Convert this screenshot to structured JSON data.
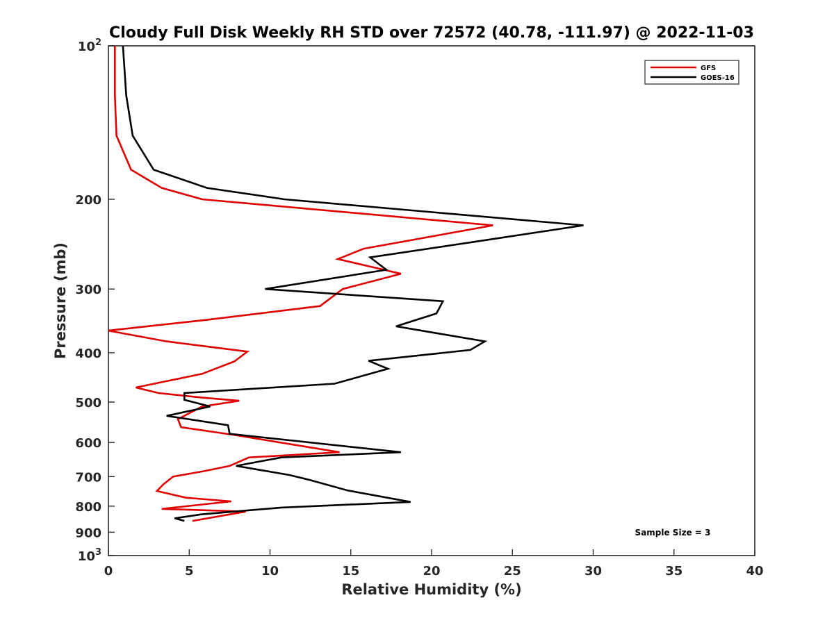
{
  "chart_data": {
    "type": "line",
    "title": "Cloudy Full Disk Weekly RH STD over 72572 (40.78, -111.97) @ 2022-11-03",
    "xlabel": "Relative Humidity (%)",
    "ylabel": "Pressure (mb)",
    "xlim": [
      0,
      40
    ],
    "ylim": [
      100,
      1000
    ],
    "yscale": "log",
    "y_reversed": true,
    "grid": false,
    "x_ticks": [
      "0",
      "5",
      "10",
      "15",
      "20",
      "25",
      "30",
      "35",
      "40"
    ],
    "y_ticks": [
      {
        "value": 100,
        "base": "10",
        "exp": "2"
      },
      {
        "value": 200,
        "label": "200"
      },
      {
        "value": 300,
        "label": "300"
      },
      {
        "value": 400,
        "label": "400"
      },
      {
        "value": 500,
        "label": "500"
      },
      {
        "value": 600,
        "label": "600"
      },
      {
        "value": 700,
        "label": "700"
      },
      {
        "value": 800,
        "label": "800"
      },
      {
        "value": 900,
        "label": "900"
      },
      {
        "value": 1000,
        "base": "10",
        "exp": "3"
      }
    ],
    "legend_position": "top-right",
    "annotation": "Sample Size = 3",
    "series": [
      {
        "name": "GFS",
        "color": "#e00000",
        "points": [
          [
            0.4,
            100
          ],
          [
            0.4,
            125
          ],
          [
            0.5,
            150
          ],
          [
            1.4,
            175
          ],
          [
            3.3,
            190
          ],
          [
            5.8,
            200
          ],
          [
            23.8,
            225
          ],
          [
            15.8,
            250
          ],
          [
            14.2,
            262
          ],
          [
            18.1,
            280
          ],
          [
            14.5,
            300
          ],
          [
            13.1,
            324
          ],
          [
            6,
            345
          ],
          [
            0,
            362
          ],
          [
            3.6,
            380
          ],
          [
            8.6,
            398
          ],
          [
            7.8,
            416
          ],
          [
            5.8,
            440
          ],
          [
            1.7,
            468
          ],
          [
            3.1,
            480
          ],
          [
            5.8,
            490
          ],
          [
            8.1,
            497
          ],
          [
            5.8,
            510
          ],
          [
            4.3,
            540
          ],
          [
            4.5,
            560
          ],
          [
            7.8,
            580
          ],
          [
            14.3,
            627
          ],
          [
            8.7,
            642
          ],
          [
            7.5,
            667
          ],
          [
            5.9,
            683
          ],
          [
            4,
            700
          ],
          [
            3.4,
            725
          ],
          [
            3,
            747
          ],
          [
            4.8,
            770
          ],
          [
            7.6,
            783
          ],
          [
            3.3,
            810
          ],
          [
            8.5,
            820
          ],
          [
            5.2,
            855
          ]
        ]
      },
      {
        "name": "GOES-16",
        "color": "#000000",
        "points": [
          [
            0.9,
            100
          ],
          [
            1.1,
            125
          ],
          [
            1.5,
            150
          ],
          [
            2.8,
            175
          ],
          [
            6.1,
            190
          ],
          [
            10.9,
            200
          ],
          [
            29.4,
            225
          ],
          [
            22.8,
            242
          ],
          [
            16.2,
            260
          ],
          [
            17.2,
            275
          ],
          [
            9.7,
            300
          ],
          [
            20.7,
            317
          ],
          [
            20.3,
            335
          ],
          [
            17.8,
            355
          ],
          [
            23.3,
            380
          ],
          [
            22.4,
            395
          ],
          [
            16.1,
            415
          ],
          [
            17.3,
            430
          ],
          [
            14,
            460
          ],
          [
            4.7,
            480
          ],
          [
            4.7,
            495
          ],
          [
            6.3,
            510
          ],
          [
            3.6,
            532
          ],
          [
            7.4,
            555
          ],
          [
            7.5,
            577
          ],
          [
            18.1,
            627
          ],
          [
            10.7,
            642
          ],
          [
            7.9,
            667
          ],
          [
            11.2,
            695
          ],
          [
            12.4,
            710
          ],
          [
            14.8,
            745
          ],
          [
            18.7,
            785
          ],
          [
            10.7,
            805
          ],
          [
            5.8,
            830
          ],
          [
            4.1,
            845
          ],
          [
            4.7,
            855
          ]
        ]
      }
    ]
  }
}
